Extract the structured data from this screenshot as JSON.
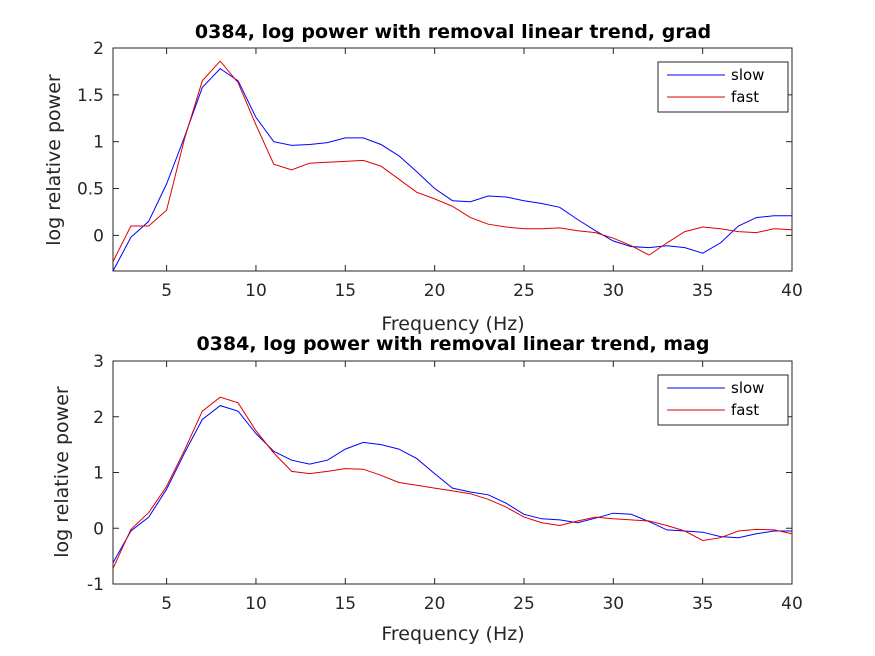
{
  "chart_data": [
    {
      "type": "line",
      "title": "0384, log power with removal linear trend, grad",
      "xlabel": "Frequency (Hz)",
      "ylabel": "log relative power",
      "xlim": [
        2,
        40
      ],
      "ylim": [
        -0.38,
        2
      ],
      "xticks": [
        5,
        10,
        15,
        20,
        25,
        30,
        35,
        40
      ],
      "yticks": [
        0,
        0.5,
        1,
        1.5,
        2
      ],
      "ytick_labels": [
        "0",
        "0.5",
        "1",
        "1.5",
        "2"
      ],
      "legend": "top-right",
      "x": [
        2,
        3,
        4,
        5,
        6,
        7,
        8,
        9,
        10,
        11,
        12,
        13,
        14,
        15,
        16,
        17,
        18,
        19,
        20,
        21,
        22,
        23,
        24,
        25,
        26,
        27,
        28,
        29,
        30,
        31,
        32,
        33,
        34,
        35,
        36,
        37,
        38,
        39,
        40
      ],
      "series": [
        {
          "name": "slow",
          "color": "#0000ff",
          "values": [
            -0.38,
            -0.02,
            0.15,
            0.55,
            1.05,
            1.58,
            1.78,
            1.65,
            1.26,
            1.0,
            0.96,
            0.97,
            0.99,
            1.04,
            1.04,
            0.97,
            0.85,
            0.68,
            0.5,
            0.37,
            0.36,
            0.42,
            0.41,
            0.37,
            0.34,
            0.3,
            0.17,
            0.05,
            -0.06,
            -0.12,
            -0.13,
            -0.11,
            -0.13,
            -0.19,
            -0.08,
            0.1,
            0.19,
            0.21,
            0.21
          ]
        },
        {
          "name": "fast",
          "color": "#dd0000",
          "values": [
            -0.28,
            0.1,
            0.1,
            0.27,
            1.03,
            1.65,
            1.86,
            1.63,
            1.18,
            0.76,
            0.7,
            0.77,
            0.78,
            0.79,
            0.8,
            0.74,
            0.6,
            0.46,
            0.39,
            0.31,
            0.19,
            0.12,
            0.09,
            0.07,
            0.07,
            0.08,
            0.05,
            0.03,
            -0.03,
            -0.11,
            -0.21,
            -0.08,
            0.04,
            0.09,
            0.07,
            0.04,
            0.03,
            0.07,
            0.06
          ]
        }
      ]
    },
    {
      "type": "line",
      "title": "0384, log power with removal linear trend, mag",
      "xlabel": "Frequency (Hz)",
      "ylabel": "log relative power",
      "xlim": [
        2,
        40
      ],
      "ylim": [
        -1,
        3
      ],
      "xticks": [
        5,
        10,
        15,
        20,
        25,
        30,
        35,
        40
      ],
      "yticks": [
        -1,
        0,
        1,
        2,
        3
      ],
      "ytick_labels": [
        "-1",
        "0",
        "1",
        "2",
        "3"
      ],
      "legend": "top-right",
      "x": [
        2,
        3,
        4,
        5,
        6,
        7,
        8,
        9,
        10,
        11,
        12,
        13,
        14,
        15,
        16,
        17,
        18,
        19,
        20,
        21,
        22,
        23,
        24,
        25,
        26,
        27,
        28,
        29,
        30,
        31,
        32,
        33,
        34,
        35,
        36,
        37,
        38,
        39,
        40
      ],
      "series": [
        {
          "name": "slow",
          "color": "#0000ff",
          "values": [
            -0.62,
            -0.05,
            0.2,
            0.7,
            1.35,
            1.95,
            2.2,
            2.1,
            1.7,
            1.38,
            1.22,
            1.15,
            1.22,
            1.42,
            1.54,
            1.5,
            1.42,
            1.25,
            0.98,
            0.72,
            0.65,
            0.6,
            0.45,
            0.25,
            0.17,
            0.15,
            0.1,
            0.18,
            0.27,
            0.25,
            0.12,
            -0.03,
            -0.05,
            -0.07,
            -0.15,
            -0.17,
            -0.1,
            -0.05,
            -0.05
          ]
        },
        {
          "name": "fast",
          "color": "#dd0000",
          "values": [
            -0.72,
            -0.02,
            0.28,
            0.75,
            1.4,
            2.1,
            2.35,
            2.25,
            1.75,
            1.35,
            1.02,
            0.98,
            1.02,
            1.07,
            1.06,
            0.95,
            0.82,
            0.77,
            0.72,
            0.67,
            0.62,
            0.52,
            0.38,
            0.2,
            0.1,
            0.05,
            0.13,
            0.2,
            0.17,
            0.15,
            0.13,
            0.05,
            -0.05,
            -0.22,
            -0.17,
            -0.05,
            -0.02,
            -0.03,
            -0.1
          ]
        }
      ]
    }
  ]
}
